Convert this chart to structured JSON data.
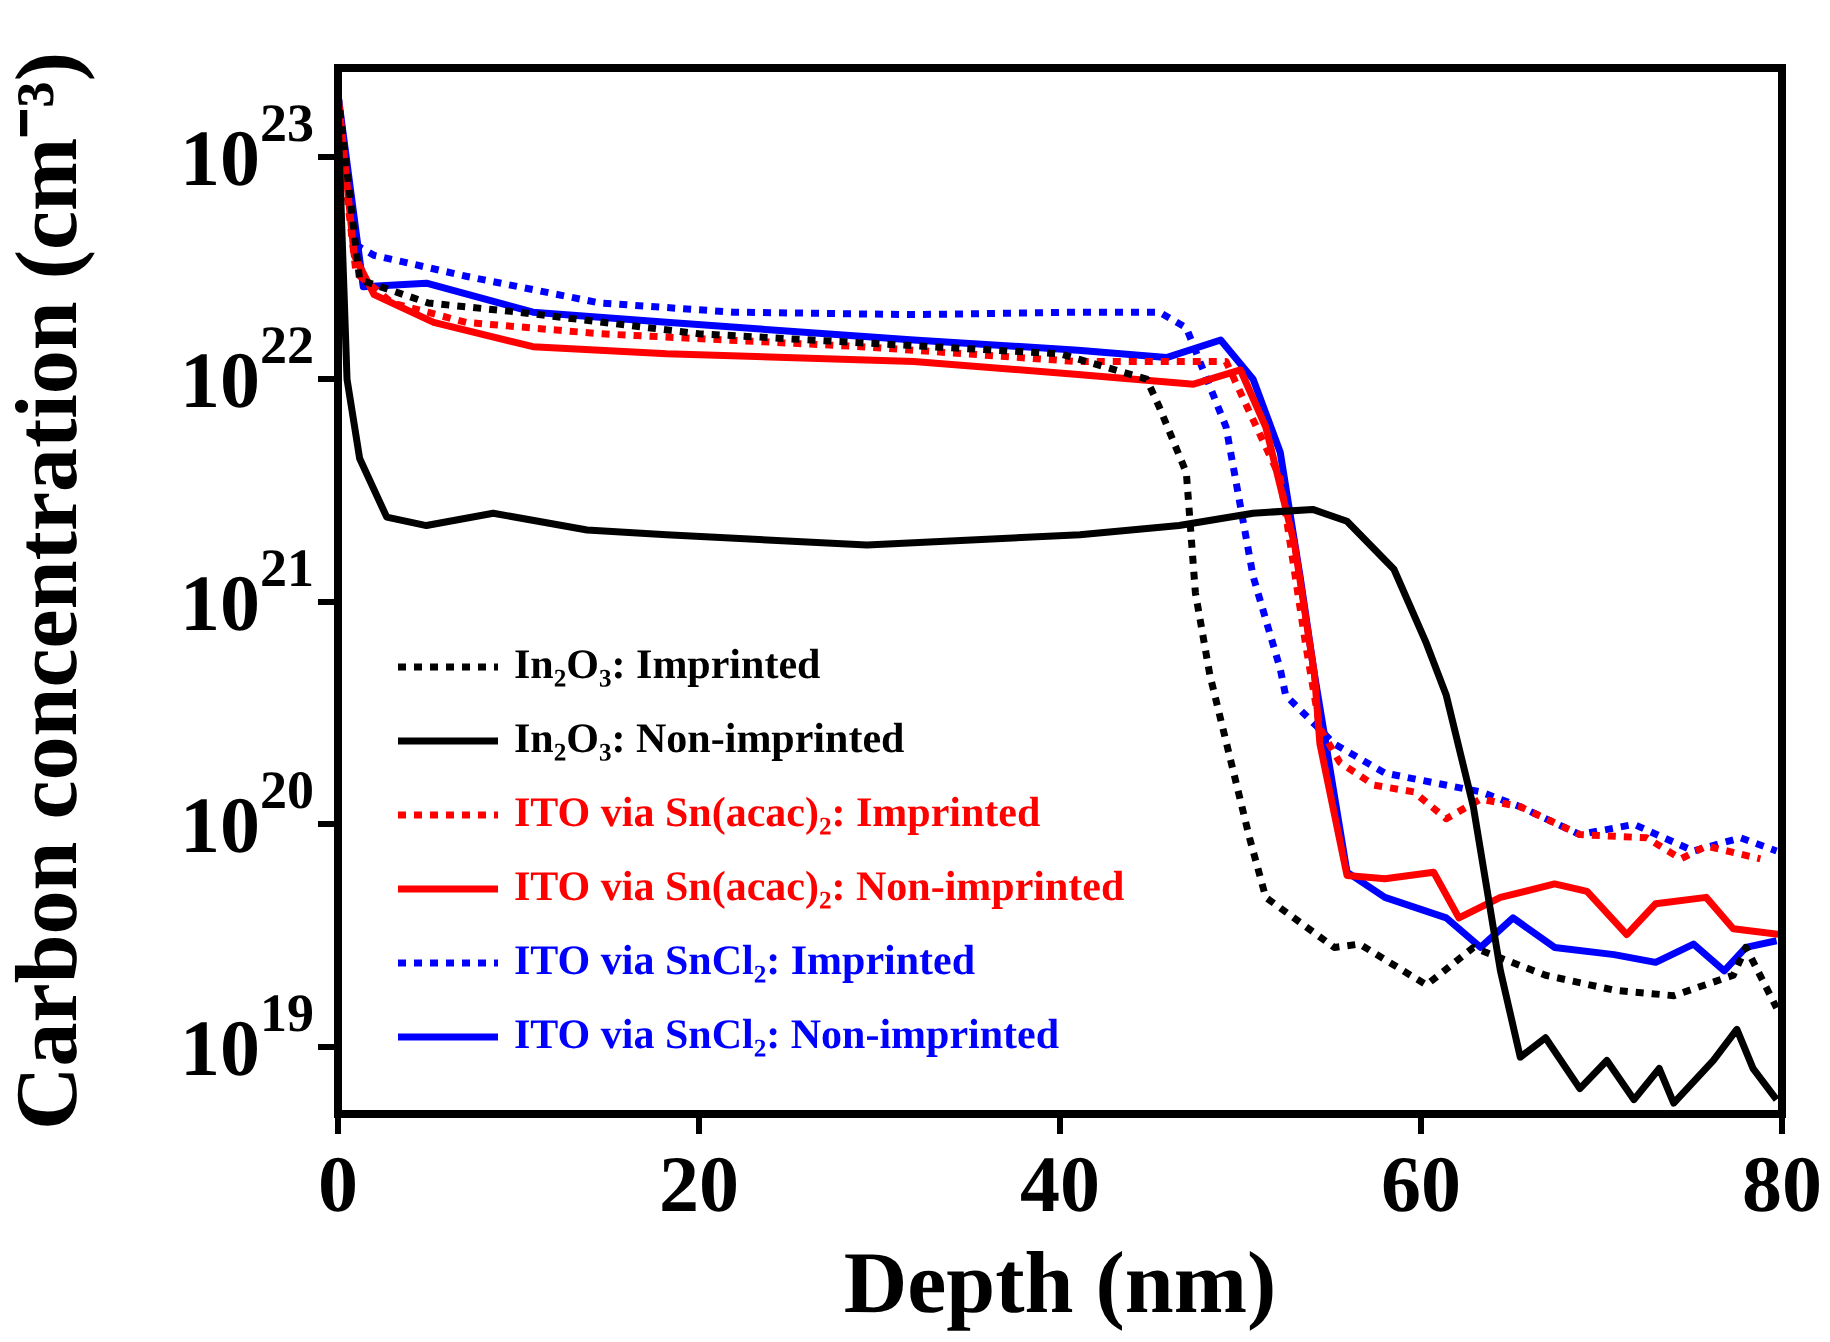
{
  "chart_data": {
    "type": "line",
    "xlabel": "Depth (nm)",
    "ylabel": "Carbon concentration (cm⁻³)",
    "log": "y",
    "xlim": [
      0,
      80
    ],
    "xticks": [
      0,
      20,
      40,
      60,
      80
    ],
    "ylim": [
      5e+18,
      2.5e+23
    ],
    "yticks": [
      {
        "value": 1e+19,
        "label": "10$^{19}$"
      },
      {
        "value": 1e+20,
        "label": "10$^{20}$"
      },
      {
        "value": 1e+21,
        "label": "10$^{21}$"
      },
      {
        "value": 1e+22,
        "label": "10$^{22}$"
      },
      {
        "value": 1e+23,
        "label": "10$^{23}$"
      }
    ],
    "grid": false,
    "legend": "bottom left",
    "marker": "none",
    "series": [
      {
        "name": "In₂O₃: Imprinted",
        "color": "#000000",
        "line_style": "dotted",
        "x": [
          0,
          1.2,
          5,
          10,
          20,
          40,
          44.8,
          45.5,
          47,
          47.5,
          48.3,
          50.5,
          51.4,
          55.2,
          56.6,
          60.3,
          62.9,
          66.9,
          70.7,
          74,
          77.3,
          78,
          79.7
        ],
        "values": [
          1.9e+23,
          2.8e+22,
          2.2e+22,
          2e+22,
          1.6e+22,
          1.3e+22,
          1e+22,
          7.5e+21,
          3.8e+21,
          1.1e+21,
          4.7e+20,
          8.7e+19,
          4.7e+19,
          2.8e+19,
          2.9e+19,
          1.9e+19,
          2.8e+19,
          2.1e+19,
          1.8e+19,
          1.7e+19,
          2.1e+19,
          2.8e+19,
          1.5e+19
        ]
      },
      {
        "name": "In₂O₃: Non-imprinted",
        "color": "#000000",
        "line_style": "solid",
        "x": [
          0,
          0.5,
          1.2,
          2.7,
          4.9,
          8.6,
          13.8,
          18.2,
          29.3,
          41.1,
          46.6,
          50.7,
          54,
          55.9,
          58.5,
          60.3,
          61.4,
          62.9,
          64.4,
          65.5,
          66.9,
          68.8,
          70.3,
          71.8,
          73.2,
          74,
          76.2,
          77.5,
          78.4,
          79.7
        ],
        "values": [
          1.5e+23,
          1e+22,
          4.4e+21,
          2.4e+21,
          2.2e+21,
          2.5e+21,
          2.1e+21,
          2e+21,
          1.8e+21,
          2e+21,
          2.2e+21,
          2.5e+21,
          2.6e+21,
          2.3e+21,
          1.4e+21,
          6.5e+20,
          3.8e+20,
          1.2e+20,
          2.2e+19,
          9e+18,
          1.1e+19,
          6.5e+18,
          8.7e+18,
          5.8e+18,
          8e+18,
          5.6e+18,
          8.7e+18,
          1.2e+19,
          8e+18,
          5.8e+18
        ]
      },
      {
        "name": "ITO via Sn(acac)₂: Imprinted",
        "color": "#ff0000",
        "line_style": "dotted",
        "x": [
          0,
          1,
          3,
          7.1,
          14.5,
          29,
          41,
          46.6,
          49.2,
          52.2,
          53.6,
          54.4,
          55.5,
          57.4,
          59.6,
          61.4,
          63.3,
          65.5,
          68.8,
          72.5,
          74.4,
          75.8,
          78.8
        ],
        "values": [
          1.5e+23,
          3e+22,
          2.2e+22,
          1.8e+22,
          1.6e+22,
          1.4e+22,
          1.2e+22,
          1.2e+22,
          1.2e+22,
          3.6e+21,
          6.5e+20,
          2.7e+20,
          1.9e+20,
          1.5e+20,
          1.4e+20,
          1.06e+20,
          1.3e+20,
          1.2e+20,
          9e+19,
          8.7e+19,
          7e+19,
          8e+19,
          7e+19
        ]
      },
      {
        "name": "ITO via Sn(acac)₂: Non-imprinted",
        "color": "#ff0000",
        "line_style": "solid",
        "x": [
          0,
          0.9,
          2,
          5.3,
          10.8,
          18.2,
          31.9,
          41,
          47.4,
          50,
          51.4,
          53,
          54.1,
          54.4,
          55.9,
          58,
          60.7,
          62.1,
          64.4,
          67.4,
          69.2,
          71.4,
          73,
          75.8,
          77.3,
          79.9
        ],
        "values": [
          1.9e+23,
          3.6e+22,
          2.4e+22,
          1.8e+22,
          1.4e+22,
          1.3e+22,
          1.2e+22,
          1.05e+22,
          9.5e+21,
          1.1e+22,
          6.1e+21,
          1.8e+21,
          4.7e+20,
          2.3e+20,
          5.9e+19,
          5.7e+19,
          6.1e+19,
          3.8e+19,
          4.7e+19,
          5.4e+19,
          5e+19,
          3.2e+19,
          4.4e+19,
          4.7e+19,
          3.4e+19,
          3.2e+19
        ]
      },
      {
        "name": "ITO via SnCl₂: Imprinted",
        "color": "#0000ff",
        "line_style": "dotted",
        "x": [
          0,
          1,
          2,
          7.1,
          14.5,
          21.9,
          31.9,
          41,
          45.5,
          47,
          49.2,
          50.7,
          52.2,
          52.5,
          55.2,
          58,
          63.3,
          65.5,
          68.8,
          71.8,
          75.1,
          77.7,
          79.7
        ],
        "values": [
          1.5e+23,
          4e+22,
          3.6e+22,
          2.9e+22,
          2.2e+22,
          2e+22,
          1.95e+22,
          2e+22,
          2e+22,
          1.7e+22,
          6.1e+21,
          1.3e+21,
          5e+20,
          3.8e+20,
          2.3e+20,
          1.7e+20,
          1.4e+20,
          1.2e+20,
          9e+19,
          1e+20,
          7.6e+19,
          8.7e+19,
          7.6e+19
        ]
      },
      {
        "name": "ITO via SnCl₂: Non-imprinted",
        "color": "#0000ff",
        "line_style": "solid",
        "x": [
          0,
          1.4,
          4.9,
          10.8,
          18.2,
          31.9,
          41,
          45.9,
          48.9,
          50.7,
          52.2,
          53.3,
          54.1,
          55.9,
          58,
          61.4,
          63.3,
          65.1,
          67.4,
          70.7,
          73,
          75.1,
          76.8,
          78,
          79.7
        ],
        "values": [
          1.9e+23,
          2.6e+22,
          2.7e+22,
          2e+22,
          1.8e+22,
          1.5e+22,
          1.35e+22,
          1.25e+22,
          1.5e+22,
          1e+22,
          4.7e+21,
          1.3e+21,
          4.7e+20,
          6.1e+19,
          4.7e+19,
          3.8e+19,
          2.8e+19,
          3.8e+19,
          2.8e+19,
          2.6e+19,
          2.4e+19,
          2.9e+19,
          2.2e+19,
          2.8e+19,
          3e+19
        ]
      }
    ]
  }
}
